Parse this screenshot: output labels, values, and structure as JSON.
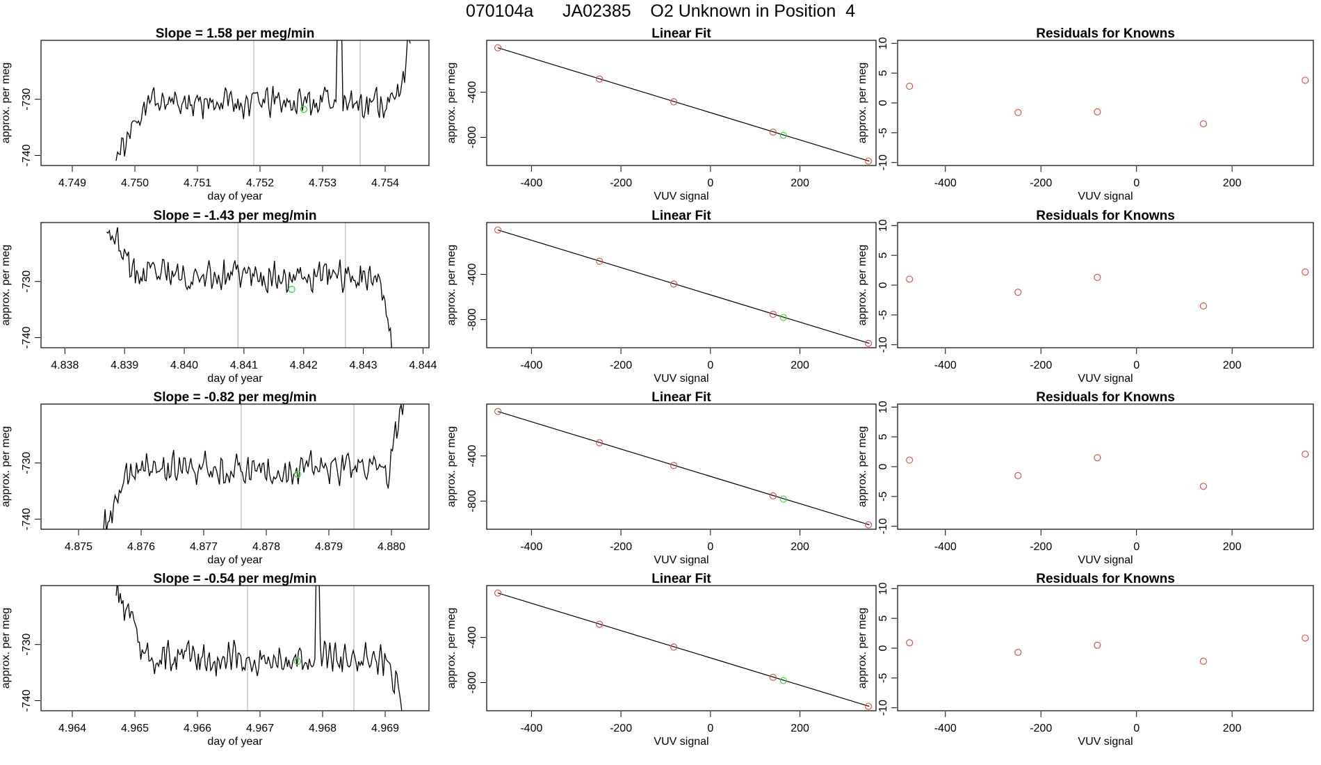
{
  "figure": {
    "title": "070104a      JA02385    O2 Unknown in Position  4",
    "colors": {
      "axis": "#000000",
      "trace": "#000000",
      "marker_vline": "#bdbdbd",
      "known": "#d9534f",
      "unknown": "#33dd33"
    }
  },
  "chart_data": [
    {
      "type": "line",
      "row": 0,
      "panel": "timeseries",
      "title": "Slope =  1.58  per meg/min",
      "xlabel": "day of year",
      "ylabel": "approx. per meg",
      "xlim": [
        4.7485,
        4.7547
      ],
      "ylim": [
        -741.8,
        -719.5
      ],
      "xticks": [
        "4.749",
        "4.750",
        "4.751",
        "4.752",
        "4.753",
        "4.754"
      ],
      "yticks": [
        "-740",
        "-730"
      ],
      "x_start": 4.7497,
      "x_end": 4.7544,
      "start_level": -741.0,
      "mean_level": -730.5,
      "end_level": -720.0,
      "jitter": 1.6,
      "spike_frac": 0.76,
      "seed": 11,
      "vlines": [
        4.7519,
        4.7536
      ],
      "unknown_point": {
        "x": 4.7527,
        "y": -731.8
      }
    },
    {
      "type": "scatter",
      "row": 0,
      "panel": "linear_fit",
      "title": "Linear Fit",
      "xlabel": "VUV signal",
      "ylabel": "approx. per meg",
      "xlim": [
        -500,
        370
      ],
      "ylim": [
        -1050,
        60
      ],
      "xticks": [
        "-400",
        "-200",
        "0",
        "200"
      ],
      "yticks": [
        "-400",
        "-800"
      ],
      "fit_line": {
        "x": [
          -475,
          355
        ],
        "y": [
          -6,
          -1011
        ]
      },
      "knowns": {
        "x": [
          -475,
          -248,
          -82,
          140,
          353
        ],
        "y": [
          -6,
          -283,
          -485,
          -754,
          -1011
        ]
      },
      "unknowns": {
        "x": [
          163
        ],
        "y": [
          -782
        ]
      }
    },
    {
      "type": "scatter",
      "row": 0,
      "panel": "residuals",
      "title": "Residuals for Knowns",
      "xlabel": "VUV signal",
      "ylabel": "approx. per meg",
      "xlim": [
        -500,
        370
      ],
      "ylim": [
        -10.5,
        10.5
      ],
      "xticks": [
        "-400",
        "-200",
        "0",
        "200"
      ],
      "yticks": [
        "10",
        "5",
        "0",
        "-5",
        "-10"
      ],
      "x": [
        -475,
        -248,
        -82,
        140,
        353
      ],
      "y": [
        2.8,
        -1.6,
        -1.5,
        -3.5,
        3.8
      ]
    },
    {
      "type": "line",
      "row": 1,
      "panel": "timeseries",
      "title": "Slope =  -1.43  per meg/min",
      "xlabel": "day of year",
      "ylabel": "approx. per meg",
      "xlim": [
        4.8376,
        4.8441
      ],
      "ylim": [
        -741.8,
        -719.5
      ],
      "xticks": [
        "4.838",
        "4.839",
        "4.840",
        "4.841",
        "4.842",
        "4.843",
        "4.844"
      ],
      "yticks": [
        "-740",
        "-730"
      ],
      "x_start": 4.8387,
      "x_end": 4.8435,
      "start_level": -719.5,
      "mean_level": -729.0,
      "end_level": -741.8,
      "jitter": 1.6,
      "spike_frac": -1,
      "seed": 23,
      "vlines": [
        4.8409,
        4.8427
      ],
      "unknown_point": {
        "x": 4.8418,
        "y": -731.4
      }
    },
    {
      "type": "scatter",
      "row": 1,
      "panel": "linear_fit",
      "title": "Linear Fit",
      "xlabel": "VUV signal",
      "ylabel": "approx. per meg",
      "xlim": [
        -500,
        370
      ],
      "ylim": [
        -1050,
        60
      ],
      "xticks": [
        "-400",
        "-200",
        "0",
        "200"
      ],
      "yticks": [
        "-400",
        "-800"
      ],
      "fit_line": {
        "x": [
          -475,
          355
        ],
        "y": [
          -6,
          -1011
        ]
      },
      "knowns": {
        "x": [
          -475,
          -248,
          -82,
          140,
          353
        ],
        "y": [
          -6,
          -283,
          -485,
          -754,
          -1011
        ]
      },
      "unknowns": {
        "x": [
          163
        ],
        "y": [
          -782
        ]
      }
    },
    {
      "type": "scatter",
      "row": 1,
      "panel": "residuals",
      "title": "Residuals for Knowns",
      "xlabel": "VUV signal",
      "ylabel": "approx. per meg",
      "xlim": [
        -500,
        370
      ],
      "ylim": [
        -10.5,
        10.5
      ],
      "xticks": [
        "-400",
        "-200",
        "0",
        "200"
      ],
      "yticks": [
        "10",
        "5",
        "0",
        "-5",
        "-10"
      ],
      "x": [
        -475,
        -248,
        -82,
        140,
        353
      ],
      "y": [
        1.0,
        -1.2,
        1.3,
        -3.5,
        2.2
      ]
    },
    {
      "type": "line",
      "row": 2,
      "panel": "timeseries",
      "title": "Slope =  -0.82  per meg/min",
      "xlabel": "day of year",
      "ylabel": "approx. per meg",
      "xlim": [
        4.8744,
        4.8806
      ],
      "ylim": [
        -741.8,
        -719.5
      ],
      "xticks": [
        "4.875",
        "4.876",
        "4.877",
        "4.878",
        "4.879",
        "4.880"
      ],
      "yticks": [
        "-740",
        "-730"
      ],
      "x_start": 4.8754,
      "x_end": 4.8802,
      "start_level": -741.8,
      "mean_level": -731.0,
      "end_level": -719.5,
      "jitter": 1.6,
      "spike_frac": -1,
      "seed": 37,
      "vlines": [
        4.8776,
        4.8794
      ],
      "unknown_point": {
        "x": 4.8785,
        "y": -732.0
      }
    },
    {
      "type": "scatter",
      "row": 2,
      "panel": "linear_fit",
      "title": "Linear Fit",
      "xlabel": "VUV signal",
      "ylabel": "approx. per meg",
      "xlim": [
        -500,
        370
      ],
      "ylim": [
        -1050,
        60
      ],
      "xticks": [
        "-400",
        "-200",
        "0",
        "200"
      ],
      "yticks": [
        "-400",
        "-800"
      ],
      "fit_line": {
        "x": [
          -475,
          355
        ],
        "y": [
          -6,
          -1011
        ]
      },
      "knowns": {
        "x": [
          -475,
          -248,
          -82,
          140,
          353
        ],
        "y": [
          -6,
          -283,
          -485,
          -754,
          -1011
        ]
      },
      "unknowns": {
        "x": [
          163
        ],
        "y": [
          -782
        ]
      }
    },
    {
      "type": "scatter",
      "row": 2,
      "panel": "residuals",
      "title": "Residuals for Knowns",
      "xlabel": "VUV signal",
      "ylabel": "approx. per meg",
      "xlim": [
        -500,
        370
      ],
      "ylim": [
        -10.5,
        10.5
      ],
      "xticks": [
        "-400",
        "-200",
        "0",
        "200"
      ],
      "yticks": [
        "10",
        "5",
        "0",
        "-5",
        "-10"
      ],
      "x": [
        -475,
        -248,
        -82,
        140,
        353
      ],
      "y": [
        1.1,
        -1.5,
        1.5,
        -3.3,
        2.1
      ]
    },
    {
      "type": "line",
      "row": 3,
      "panel": "timeseries",
      "title": "Slope =  -0.54  per meg/min",
      "xlabel": "day of year",
      "ylabel": "approx. per meg",
      "xlim": [
        4.9635,
        4.9697
      ],
      "ylim": [
        -741.8,
        -719.5
      ],
      "xticks": [
        "4.964",
        "4.965",
        "4.966",
        "4.967",
        "4.968",
        "4.969"
      ],
      "yticks": [
        "-740",
        "-730"
      ],
      "x_start": 4.9647,
      "x_end": 4.9693,
      "start_level": -719.5,
      "mean_level": -732.5,
      "end_level": -741.8,
      "jitter": 1.6,
      "spike_frac": 0.7,
      "seed": 53,
      "vlines": [
        4.9668,
        4.9685
      ],
      "unknown_point": {
        "x": 4.9676,
        "y": -733.0
      }
    },
    {
      "type": "scatter",
      "row": 3,
      "panel": "linear_fit",
      "title": "Linear Fit",
      "xlabel": "VUV signal",
      "ylabel": "approx. per meg",
      "xlim": [
        -500,
        370
      ],
      "ylim": [
        -1050,
        60
      ],
      "xticks": [
        "-400",
        "-200",
        "0",
        "200"
      ],
      "yticks": [
        "-400",
        "-800"
      ],
      "fit_line": {
        "x": [
          -475,
          355
        ],
        "y": [
          -6,
          -1011
        ]
      },
      "knowns": {
        "x": [
          -475,
          -248,
          -82,
          140,
          353
        ],
        "y": [
          -6,
          -283,
          -485,
          -754,
          -1011
        ]
      },
      "unknowns": {
        "x": [
          163
        ],
        "y": [
          -782
        ]
      }
    },
    {
      "type": "scatter",
      "row": 3,
      "panel": "residuals",
      "title": "Residuals for Knowns",
      "xlabel": "VUV signal",
      "ylabel": "approx. per meg",
      "xlim": [
        -500,
        370
      ],
      "ylim": [
        -10.5,
        10.5
      ],
      "xticks": [
        "-400",
        "-200",
        "0",
        "200"
      ],
      "yticks": [
        "10",
        "5",
        "0",
        "-5",
        "-10"
      ],
      "x": [
        -475,
        -248,
        -82,
        140,
        353
      ],
      "y": [
        0.9,
        -0.7,
        0.5,
        -2.2,
        1.7
      ]
    }
  ]
}
